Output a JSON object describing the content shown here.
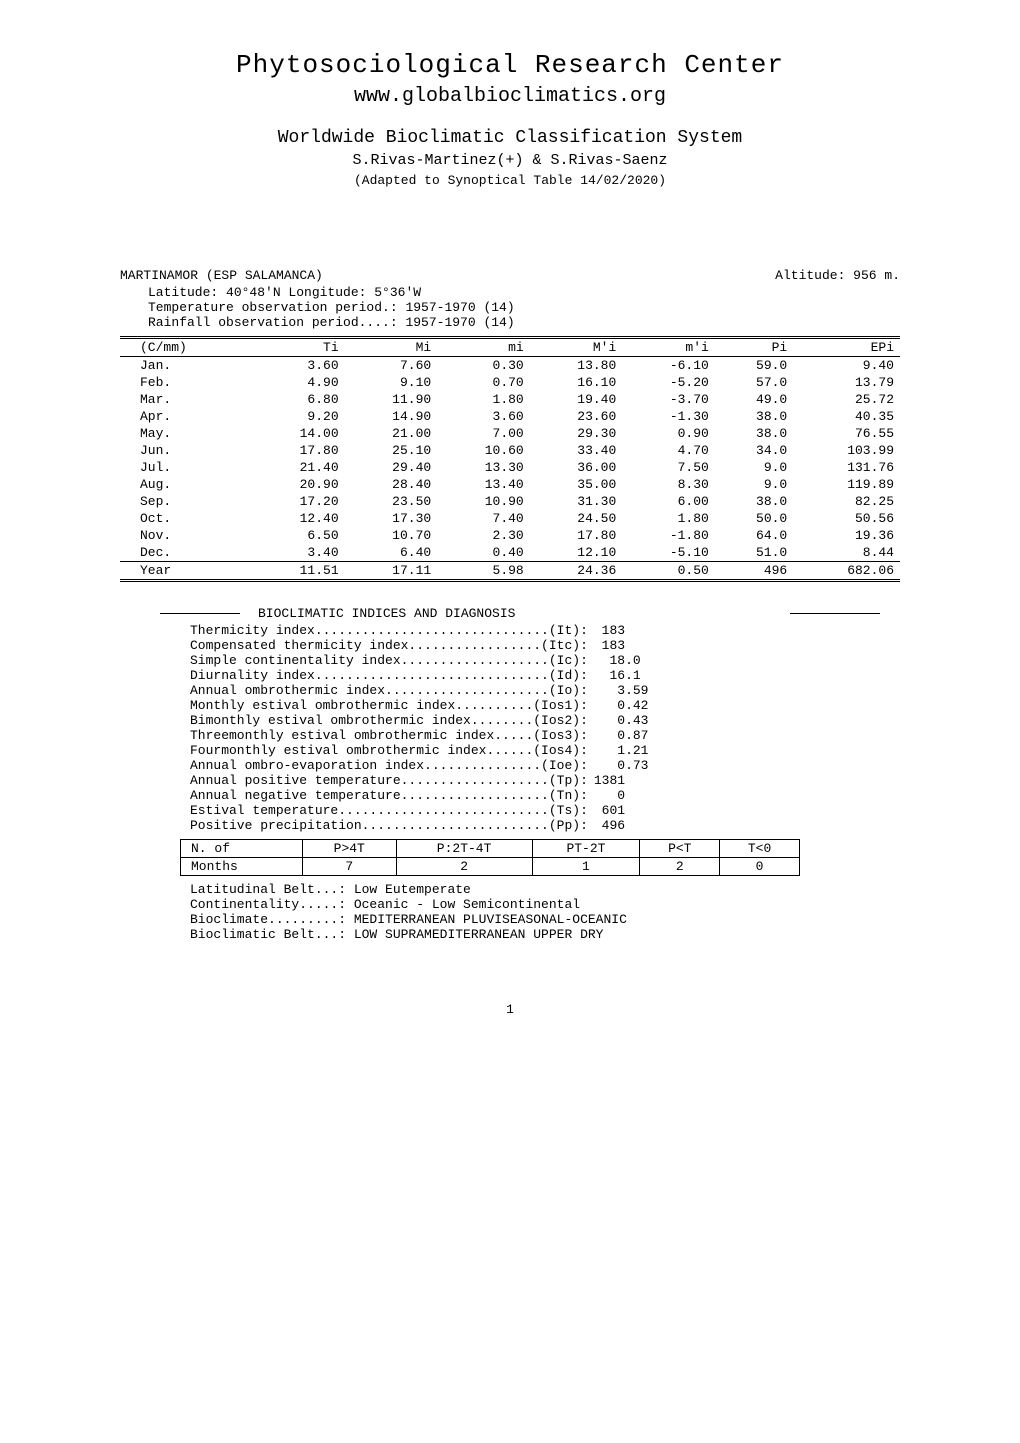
{
  "header": {
    "title": "Phytosociological Research Center",
    "url": "www.globalbioclimatics.org",
    "subtitle": "Worldwide Bioclimatic Classification System",
    "authors": "S.Rivas-Martinez(+) & S.Rivas-Saenz",
    "adapted": "(Adapted to Synoptical Table 14/02/2020)"
  },
  "station": {
    "name": "MARTINAMOR (ESP SALAMANCA)",
    "altitude": "Altitude: 956 m.",
    "latlon": "Latitude: 40°48'N  Longitude: 5°36'W",
    "temp_period": "Temperature observation period.: 1957-1970 (14)",
    "rain_period": "Rainfall observation period....: 1957-1970 (14)"
  },
  "climate_table": {
    "columns": [
      "(C/mm)",
      "Ti",
      "Mi",
      "mi",
      "M'i",
      "m'i",
      "Pi",
      "EPi"
    ],
    "rows": [
      [
        "Jan.",
        "3.60",
        "7.60",
        "0.30",
        "13.80",
        "-6.10",
        "59.0",
        "9.40"
      ],
      [
        "Feb.",
        "4.90",
        "9.10",
        "0.70",
        "16.10",
        "-5.20",
        "57.0",
        "13.79"
      ],
      [
        "Mar.",
        "6.80",
        "11.90",
        "1.80",
        "19.40",
        "-3.70",
        "49.0",
        "25.72"
      ],
      [
        "Apr.",
        "9.20",
        "14.90",
        "3.60",
        "23.60",
        "-1.30",
        "38.0",
        "40.35"
      ],
      [
        "May.",
        "14.00",
        "21.00",
        "7.00",
        "29.30",
        "0.90",
        "38.0",
        "76.55"
      ],
      [
        "Jun.",
        "17.80",
        "25.10",
        "10.60",
        "33.40",
        "4.70",
        "34.0",
        "103.99"
      ],
      [
        "Jul.",
        "21.40",
        "29.40",
        "13.30",
        "36.00",
        "7.50",
        "9.0",
        "131.76"
      ],
      [
        "Aug.",
        "20.90",
        "28.40",
        "13.40",
        "35.00",
        "8.30",
        "9.0",
        "119.89"
      ],
      [
        "Sep.",
        "17.20",
        "23.50",
        "10.90",
        "31.30",
        "6.00",
        "38.0",
        "82.25"
      ],
      [
        "Oct.",
        "12.40",
        "17.30",
        "7.40",
        "24.50",
        "1.80",
        "50.0",
        "50.56"
      ],
      [
        "Nov.",
        "6.50",
        "10.70",
        "2.30",
        "17.80",
        "-1.80",
        "64.0",
        "19.36"
      ],
      [
        "Dec.",
        "3.40",
        "6.40",
        "0.40",
        "12.10",
        "-5.10",
        "51.0",
        "8.44"
      ]
    ],
    "year": [
      "Year",
      "11.51",
      "17.11",
      "5.98",
      "24.36",
      "0.50",
      "496",
      "682.06"
    ]
  },
  "indices": {
    "title": "BIOCLIMATIC INDICES AND DIAGNOSIS",
    "items": [
      {
        "label": "Thermicity index..............................(It):",
        "value": " 183"
      },
      {
        "label": "Compensated thermicity index.................(Itc):",
        "value": " 183"
      },
      {
        "label": "Simple continentality index...................(Ic):",
        "value": "  18.0"
      },
      {
        "label": "Diurnality index..............................(Id):",
        "value": "  16.1"
      },
      {
        "label": "Annual ombrothermic index.....................(Io):",
        "value": "   3.59"
      },
      {
        "label": "Monthly estival ombrothermic index..........(Ios1):",
        "value": "   0.42"
      },
      {
        "label": "Bimonthly estival ombrothermic index........(Ios2):",
        "value": "   0.43"
      },
      {
        "label": "Threemonthly estival ombrothermic index.....(Ios3):",
        "value": "   0.87"
      },
      {
        "label": "Fourmonthly estival ombrothermic index......(Ios4):",
        "value": "   1.21"
      },
      {
        "label": "Annual ombro-evaporation index...............(Ioe):",
        "value": "   0.73"
      },
      {
        "label": "Annual positive temperature...................(Tp):",
        "value": "1381"
      },
      {
        "label": "Annual negative temperature...................(Tn):",
        "value": "   0"
      },
      {
        "label": "Estival temperature...........................(Ts):",
        "value": " 601"
      },
      {
        "label": "Positive precipitation........................(Pp):",
        "value": " 496"
      }
    ]
  },
  "thresholds": {
    "headers": [
      "N. of",
      "P>4T",
      "P:2T-4T",
      "PT-2T",
      "P<T",
      "T<0"
    ],
    "row": [
      "Months",
      "7",
      "2",
      "1",
      "2",
      "0"
    ]
  },
  "diagnosis": [
    "Latitudinal Belt...: Low Eutemperate",
    "Continentality.....: Oceanic - Low Semicontinental",
    "Bioclimate.........: MEDITERRANEAN PLUVISEASONAL-OCEANIC",
    "Bioclimatic Belt...: LOW SUPRAMEDITERRANEAN UPPER DRY"
  ],
  "page_number": "1"
}
